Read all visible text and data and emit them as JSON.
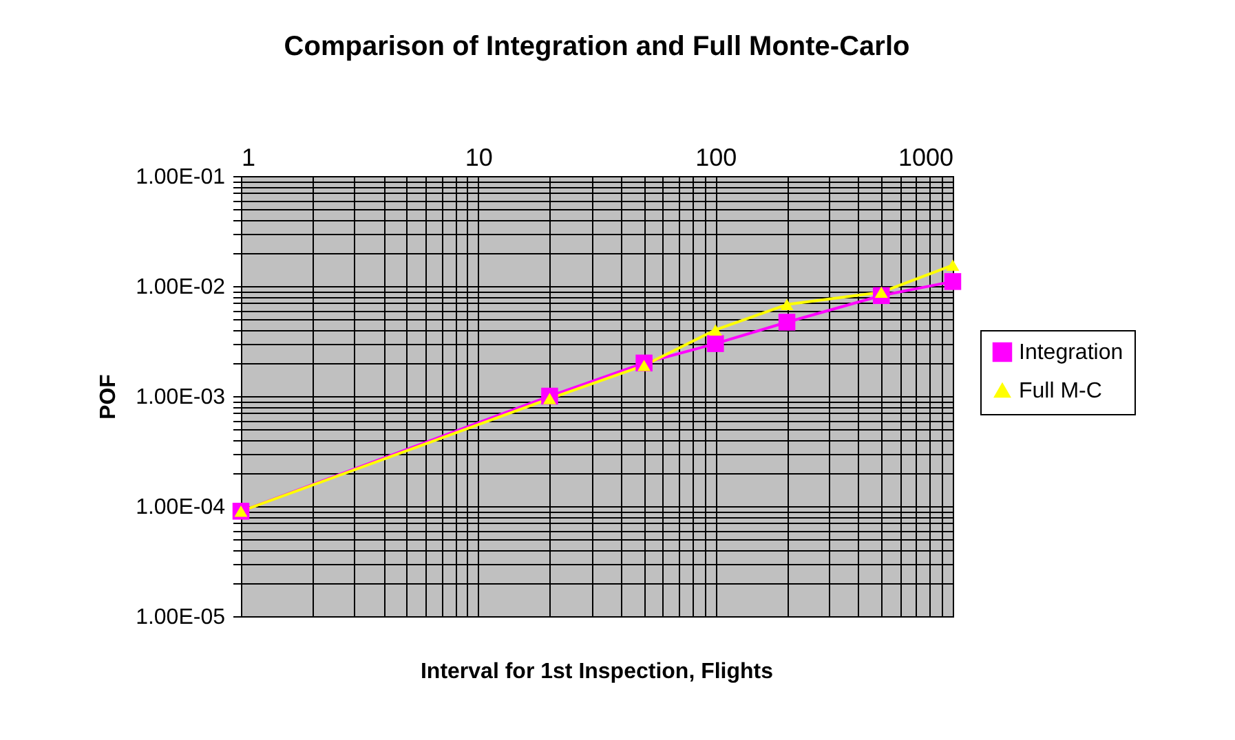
{
  "chart_data": {
    "type": "line",
    "title": "Comparison of Integration and Full Monte-Carlo",
    "xlabel": "Interval for 1st Inspection, Flights",
    "ylabel": "POF",
    "x": [
      1,
      20,
      50,
      100,
      200,
      500,
      1000
    ],
    "series": [
      {
        "name": "Integration",
        "color": "#ff00ff",
        "marker": "square",
        "values": [
          9e-05,
          0.001,
          0.002,
          0.003,
          0.0047,
          0.0082,
          0.011
        ]
      },
      {
        "name": "Full M-C",
        "color": "#ffff00",
        "marker": "triangle",
        "values": [
          9e-05,
          0.00095,
          0.0019,
          0.004,
          0.0068,
          0.0088,
          0.0155
        ]
      }
    ],
    "log": "xy",
    "grid": true,
    "legend": "right",
    "xlim": [
      1,
      1000
    ],
    "ylim": [
      1e-05,
      0.1
    ],
    "xticks": [
      1,
      {
        "value": 2,
        "label": null
      },
      {
        "value": 3,
        "label": null
      },
      {
        "value": 4,
        "label": null
      },
      {
        "value": 5,
        "label": null
      },
      {
        "value": 6,
        "label": null
      },
      {
        "value": 7,
        "label": null
      },
      {
        "value": 8,
        "label": null
      },
      {
        "value": 9,
        "label": null
      },
      10,
      {
        "value": 20,
        "label": null
      },
      {
        "value": 30,
        "label": null
      },
      {
        "value": 40,
        "label": null
      },
      {
        "value": 50,
        "label": null
      },
      {
        "value": 60,
        "label": null
      },
      {
        "value": 70,
        "label": null
      },
      {
        "value": 80,
        "label": null
      },
      {
        "value": 90,
        "label": null
      },
      100,
      {
        "value": 200,
        "label": null
      },
      {
        "value": 300,
        "label": null
      },
      {
        "value": 400,
        "label": null
      },
      {
        "value": 500,
        "label": null
      },
      {
        "value": 600,
        "label": null
      },
      {
        "value": 700,
        "label": null
      },
      {
        "value": 800,
        "label": null
      },
      {
        "value": 900,
        "label": null
      },
      1000
    ],
    "yticks": [
      {
        "value": 1e-05,
        "label": "1.00E-05"
      },
      {
        "value": 2e-05,
        "label": null
      },
      {
        "value": 3e-05,
        "label": null
      },
      {
        "value": 4e-05,
        "label": null
      },
      {
        "value": 5e-05,
        "label": null
      },
      {
        "value": 6e-05,
        "label": null
      },
      {
        "value": 7e-05,
        "label": null
      },
      {
        "value": 8e-05,
        "label": null
      },
      {
        "value": 9e-05,
        "label": null
      },
      {
        "value": 0.0001,
        "label": "1.00E-04"
      },
      {
        "value": 0.0002,
        "label": null
      },
      {
        "value": 0.0003,
        "label": null
      },
      {
        "value": 0.0004,
        "label": null
      },
      {
        "value": 0.0005,
        "label": null
      },
      {
        "value": 0.0006,
        "label": null
      },
      {
        "value": 0.0007,
        "label": null
      },
      {
        "value": 0.0008,
        "label": null
      },
      {
        "value": 0.0009,
        "label": null
      },
      {
        "value": 0.001,
        "label": "1.00E-03"
      },
      {
        "value": 0.002,
        "label": null
      },
      {
        "value": 0.003,
        "label": null
      },
      {
        "value": 0.004,
        "label": null
      },
      {
        "value": 0.005,
        "label": null
      },
      {
        "value": 0.006,
        "label": null
      },
      {
        "value": 0.007,
        "label": null
      },
      {
        "value": 0.008,
        "label": null
      },
      {
        "value": 0.009,
        "label": null
      },
      {
        "value": 0.01,
        "label": "1.00E-02"
      },
      {
        "value": 0.02,
        "label": null
      },
      {
        "value": 0.03,
        "label": null
      },
      {
        "value": 0.04,
        "label": null
      },
      {
        "value": 0.05,
        "label": null
      },
      {
        "value": 0.06,
        "label": null
      },
      {
        "value": 0.07,
        "label": null
      },
      {
        "value": 0.08,
        "label": null
      },
      {
        "value": 0.09,
        "label": null
      },
      {
        "value": 0.1,
        "label": "1.00E-01"
      }
    ]
  }
}
